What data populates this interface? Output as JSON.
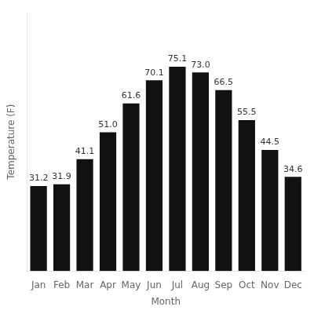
{
  "chart_data": {
    "type": "bar",
    "categories": [
      "Jan",
      "Feb",
      "Mar",
      "Apr",
      "May",
      "Jun",
      "Jul",
      "Aug",
      "Sep",
      "Oct",
      "Nov",
      "Dec"
    ],
    "values": [
      31.2,
      31.9,
      41.1,
      51.0,
      61.6,
      70.1,
      75.1,
      73.0,
      66.5,
      55.5,
      44.5,
      34.6
    ],
    "value_labels": [
      "31.2",
      "31.9",
      "41.1",
      "51.0",
      "61.6",
      "70.1",
      "75.1",
      "73.0",
      "66.5",
      "55.5",
      "44.5",
      "34.6"
    ],
    "color": "#111111",
    "xlabel": "Month",
    "ylabel": "Temperature (F)",
    "ylim": [
      0,
      95
    ],
    "grid": false,
    "data_labels": true,
    "tick_labels": "x"
  }
}
